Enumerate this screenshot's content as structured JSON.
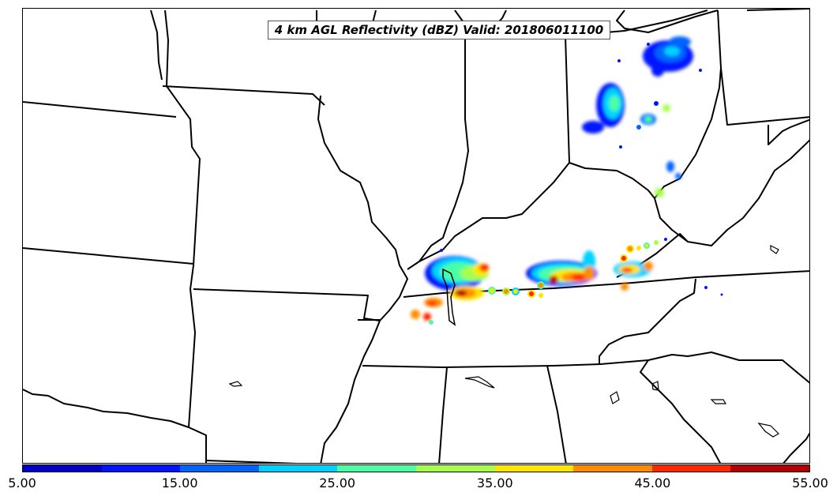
{
  "title": "4 km AGL Reflectivity (dBZ) Valid: 201806011100",
  "colorbar": {
    "colors": [
      "#0000c8",
      "#0014ff",
      "#0064ff",
      "#00d2ff",
      "#4bffa5",
      "#a5ff4b",
      "#ffe600",
      "#ff8c00",
      "#ff2800",
      "#b40000"
    ],
    "tick_labels": [
      "5.00",
      "15.00",
      "25.00",
      "35.00",
      "45.00",
      "55.00"
    ]
  }
}
